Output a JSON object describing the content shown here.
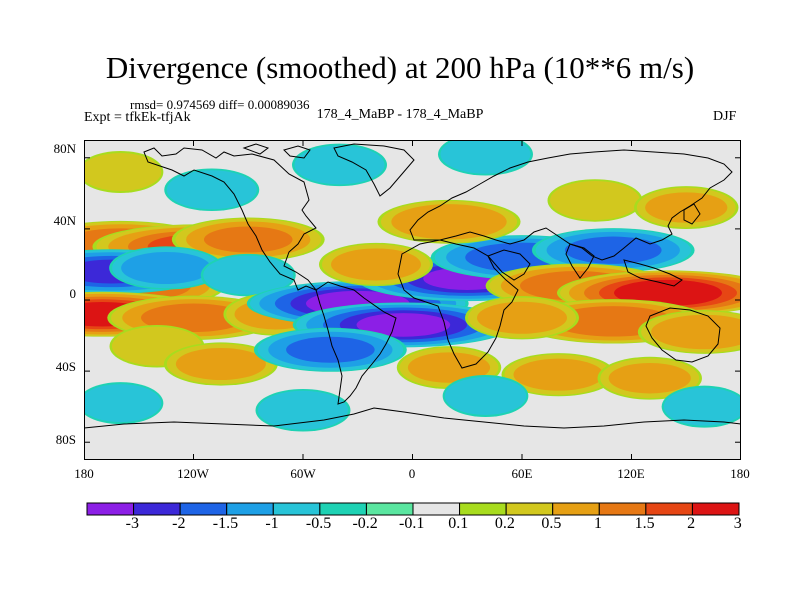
{
  "header": {
    "title": "Divergence (smoothed) at 200 hPa (10**6 m/s)",
    "stats": "rmsd= 0.974569 diff= 0.00089036",
    "experiment": "Expt = tfkEk-tfjAk",
    "period": "178_4_MaBP - 178_4_MaBP",
    "season": "DJF"
  },
  "axes": {
    "y_ticks": [
      "80N",
      "40N",
      "0",
      "40S",
      "80S"
    ],
    "y_values": [
      80,
      40,
      0,
      -40,
      -80
    ],
    "x_ticks": [
      "180",
      "120W",
      "60W",
      "0",
      "60E",
      "120E",
      "180"
    ],
    "x_values": [
      -180,
      -120,
      -60,
      0,
      60,
      120,
      180
    ],
    "lon_range": [
      -180,
      180
    ],
    "lat_range": [
      -90,
      90
    ]
  },
  "colorbar": {
    "labels": [
      "-3",
      "-2",
      "-1.5",
      "-1",
      "-0.5",
      "-0.2",
      "-0.1",
      "0.1",
      "0.2",
      "0.5",
      "1",
      "1.5",
      "2",
      "3"
    ],
    "colors": [
      "#8c1fe6",
      "#3c28d8",
      "#1e64e6",
      "#1ea0e6",
      "#28c4d8",
      "#1ed2b4",
      "#5ae6a0",
      "#e6e6e6",
      "#a8dc1e",
      "#d2c81e",
      "#e6a014",
      "#e67814",
      "#e64614",
      "#dc1414"
    ]
  },
  "chart_data": {
    "type": "heatmap",
    "title": "Divergence (smoothed) at 200 hPa (10**6 m/s)",
    "xlabel": "",
    "ylabel": "",
    "xlim": [
      -180,
      180
    ],
    "ylim": [
      -90,
      90
    ],
    "levels": [
      -3,
      -2,
      -1.5,
      -1,
      -0.5,
      -0.2,
      -0.1,
      0.1,
      0.2,
      0.5,
      1,
      1.5,
      2,
      3
    ],
    "features": [
      {
        "lon": -150,
        "lat": 8,
        "value": 1.2
      },
      {
        "lon": -160,
        "lat": 32,
        "value": 1.3
      },
      {
        "lon": -120,
        "lat": 30,
        "value": 1.5
      },
      {
        "lon": -90,
        "lat": 34,
        "value": 1.0
      },
      {
        "lon": -165,
        "lat": 16,
        "value": -1.5
      },
      {
        "lon": -135,
        "lat": 18,
        "value": -0.6
      },
      {
        "lon": -90,
        "lat": 14,
        "value": -0.4
      },
      {
        "lon": -170,
        "lat": -8,
        "value": 2.2
      },
      {
        "lon": -120,
        "lat": -10,
        "value": 1.2
      },
      {
        "lon": -75,
        "lat": -8,
        "value": 0.5
      },
      {
        "lon": -140,
        "lat": -26,
        "value": 0.4
      },
      {
        "lon": -105,
        "lat": -36,
        "value": 0.6
      },
      {
        "lon": -30,
        "lat": -2,
        "value": -2.3
      },
      {
        "lon": -5,
        "lat": -14,
        "value": -2.1
      },
      {
        "lon": -45,
        "lat": -28,
        "value": -1.0
      },
      {
        "lon": 30,
        "lat": 12,
        "value": -2.0
      },
      {
        "lon": 60,
        "lat": 24,
        "value": -1.3
      },
      {
        "lon": 110,
        "lat": 28,
        "value": -1.1
      },
      {
        "lon": -20,
        "lat": 20,
        "value": 0.6
      },
      {
        "lon": 20,
        "lat": 44,
        "value": 0.9
      },
      {
        "lon": 100,
        "lat": 56,
        "value": 0.4
      },
      {
        "lon": 150,
        "lat": 52,
        "value": 0.5
      },
      {
        "lon": 90,
        "lat": 8,
        "value": 1.3
      },
      {
        "lon": 140,
        "lat": 4,
        "value": 2.4
      },
      {
        "lon": 110,
        "lat": -12,
        "value": 1.4
      },
      {
        "lon": 160,
        "lat": -18,
        "value": 0.8
      },
      {
        "lon": 60,
        "lat": -10,
        "value": 0.6
      },
      {
        "lon": 20,
        "lat": -38,
        "value": 0.5
      },
      {
        "lon": 80,
        "lat": -42,
        "value": 0.6
      },
      {
        "lon": 130,
        "lat": -44,
        "value": 0.5
      },
      {
        "lon": -160,
        "lat": -58,
        "value": -0.3
      },
      {
        "lon": -60,
        "lat": -62,
        "value": -0.4
      },
      {
        "lon": 40,
        "lat": -54,
        "value": -0.3
      },
      {
        "lon": 160,
        "lat": -60,
        "value": -0.3
      },
      {
        "lon": -110,
        "lat": 62,
        "value": -0.4
      },
      {
        "lon": -40,
        "lat": 76,
        "value": -0.4
      },
      {
        "lon": 40,
        "lat": 82,
        "value": -0.4
      },
      {
        "lon": -160,
        "lat": 72,
        "value": 0.3
      }
    ]
  }
}
